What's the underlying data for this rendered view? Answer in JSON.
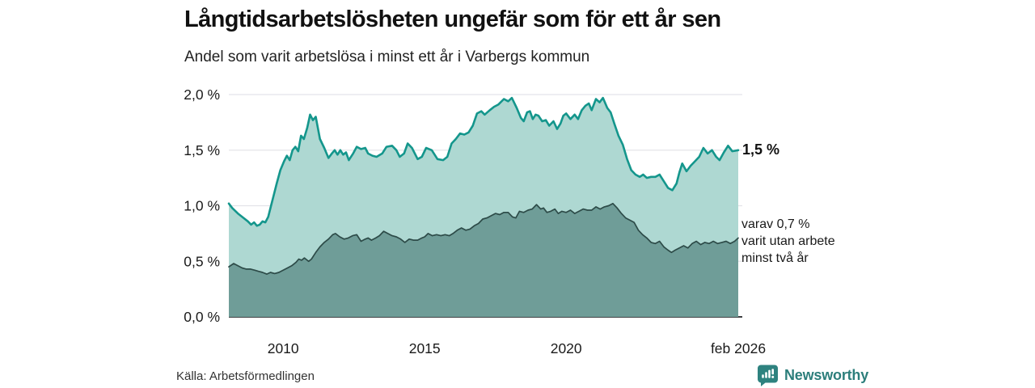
{
  "chart_data": {
    "type": "area",
    "title": "Långtidsarbetslösheten ungefär som för ett år sen",
    "subtitle": "Andel som varit arbetslösa i minst ett år i Varbergs kommun",
    "unit": "%",
    "grid": true,
    "legend": "none",
    "x_axis": {
      "range": [
        2008.08,
        2026.08
      ],
      "ticks": [
        {
          "label": "2010",
          "value": 2010
        },
        {
          "label": "2015",
          "value": 2015
        },
        {
          "label": "2020",
          "value": 2020
        },
        {
          "label": "feb 2026",
          "value": 2026.08
        }
      ]
    },
    "y_axis": {
      "range": [
        0,
        2
      ],
      "ticks": [
        {
          "label": "0,0 %",
          "value": 0
        },
        {
          "label": "0,5 %",
          "value": 0.5
        },
        {
          "label": "1,0 %",
          "value": 1
        },
        {
          "label": "1,5 %",
          "value": 1.5
        },
        {
          "label": "2,0 %",
          "value": 2
        }
      ]
    },
    "series": [
      {
        "name": "Andel arbetslösa minst ett år",
        "line_color": "#14968c",
        "fill_color": "#aed8d2",
        "line_width": 2.6,
        "latest_value": "1,5 %",
        "points": [
          [
            2008.08,
            1.02
          ],
          [
            2008.2,
            0.98
          ],
          [
            2008.4,
            0.93
          ],
          [
            2008.6,
            0.89
          ],
          [
            2008.75,
            0.86
          ],
          [
            2008.87,
            0.83
          ],
          [
            2008.97,
            0.85
          ],
          [
            2009.07,
            0.82
          ],
          [
            2009.17,
            0.83
          ],
          [
            2009.27,
            0.86
          ],
          [
            2009.37,
            0.85
          ],
          [
            2009.47,
            0.9
          ],
          [
            2009.57,
            1.0
          ],
          [
            2009.67,
            1.1
          ],
          [
            2009.77,
            1.2
          ],
          [
            2009.9,
            1.32
          ],
          [
            2010.03,
            1.4
          ],
          [
            2010.13,
            1.45
          ],
          [
            2010.23,
            1.41
          ],
          [
            2010.33,
            1.5
          ],
          [
            2010.43,
            1.53
          ],
          [
            2010.53,
            1.49
          ],
          [
            2010.63,
            1.63
          ],
          [
            2010.73,
            1.6
          ],
          [
            2010.85,
            1.7
          ],
          [
            2010.95,
            1.82
          ],
          [
            2011.05,
            1.77
          ],
          [
            2011.15,
            1.8
          ],
          [
            2011.3,
            1.6
          ],
          [
            2011.45,
            1.52
          ],
          [
            2011.6,
            1.43
          ],
          [
            2011.72,
            1.47
          ],
          [
            2011.82,
            1.5
          ],
          [
            2011.92,
            1.46
          ],
          [
            2012.02,
            1.5
          ],
          [
            2012.12,
            1.46
          ],
          [
            2012.22,
            1.48
          ],
          [
            2012.32,
            1.41
          ],
          [
            2012.47,
            1.47
          ],
          [
            2012.6,
            1.53
          ],
          [
            2012.75,
            1.51
          ],
          [
            2012.9,
            1.52
          ],
          [
            2013.0,
            1.47
          ],
          [
            2013.15,
            1.45
          ],
          [
            2013.3,
            1.44
          ],
          [
            2013.5,
            1.47
          ],
          [
            2013.65,
            1.53
          ],
          [
            2013.85,
            1.54
          ],
          [
            2014.0,
            1.5
          ],
          [
            2014.12,
            1.44
          ],
          [
            2014.27,
            1.47
          ],
          [
            2014.4,
            1.56
          ],
          [
            2014.55,
            1.52
          ],
          [
            2014.75,
            1.42
          ],
          [
            2014.9,
            1.44
          ],
          [
            2015.05,
            1.52
          ],
          [
            2015.25,
            1.5
          ],
          [
            2015.45,
            1.42
          ],
          [
            2015.65,
            1.41
          ],
          [
            2015.8,
            1.44
          ],
          [
            2015.95,
            1.56
          ],
          [
            2016.1,
            1.6
          ],
          [
            2016.25,
            1.65
          ],
          [
            2016.4,
            1.64
          ],
          [
            2016.55,
            1.66
          ],
          [
            2016.7,
            1.72
          ],
          [
            2016.85,
            1.83
          ],
          [
            2017.0,
            1.85
          ],
          [
            2017.12,
            1.82
          ],
          [
            2017.3,
            1.86
          ],
          [
            2017.45,
            1.89
          ],
          [
            2017.6,
            1.91
          ],
          [
            2017.8,
            1.96
          ],
          [
            2017.95,
            1.94
          ],
          [
            2018.08,
            1.97
          ],
          [
            2018.25,
            1.88
          ],
          [
            2018.4,
            1.79
          ],
          [
            2018.5,
            1.76
          ],
          [
            2018.62,
            1.84
          ],
          [
            2018.72,
            1.85
          ],
          [
            2018.82,
            1.78
          ],
          [
            2018.92,
            1.82
          ],
          [
            2019.02,
            1.81
          ],
          [
            2019.15,
            1.76
          ],
          [
            2019.28,
            1.77
          ],
          [
            2019.4,
            1.72
          ],
          [
            2019.55,
            1.76
          ],
          [
            2019.68,
            1.69
          ],
          [
            2019.8,
            1.74
          ],
          [
            2019.9,
            1.81
          ],
          [
            2020.0,
            1.83
          ],
          [
            2020.15,
            1.78
          ],
          [
            2020.3,
            1.82
          ],
          [
            2020.42,
            1.78
          ],
          [
            2020.55,
            1.86
          ],
          [
            2020.68,
            1.9
          ],
          [
            2020.8,
            1.92
          ],
          [
            2020.9,
            1.86
          ],
          [
            2021.05,
            1.96
          ],
          [
            2021.18,
            1.93
          ],
          [
            2021.3,
            1.97
          ],
          [
            2021.45,
            1.88
          ],
          [
            2021.57,
            1.84
          ],
          [
            2021.7,
            1.74
          ],
          [
            2021.85,
            1.63
          ],
          [
            2022.0,
            1.55
          ],
          [
            2022.15,
            1.42
          ],
          [
            2022.3,
            1.32
          ],
          [
            2022.45,
            1.28
          ],
          [
            2022.6,
            1.26
          ],
          [
            2022.72,
            1.28
          ],
          [
            2022.85,
            1.25
          ],
          [
            2023.0,
            1.26
          ],
          [
            2023.15,
            1.26
          ],
          [
            2023.3,
            1.28
          ],
          [
            2023.45,
            1.22
          ],
          [
            2023.6,
            1.16
          ],
          [
            2023.75,
            1.14
          ],
          [
            2023.9,
            1.2
          ],
          [
            2024.0,
            1.3
          ],
          [
            2024.1,
            1.38
          ],
          [
            2024.25,
            1.31
          ],
          [
            2024.4,
            1.36
          ],
          [
            2024.55,
            1.4
          ],
          [
            2024.7,
            1.44
          ],
          [
            2024.85,
            1.52
          ],
          [
            2025.0,
            1.47
          ],
          [
            2025.15,
            1.5
          ],
          [
            2025.3,
            1.44
          ],
          [
            2025.42,
            1.41
          ],
          [
            2025.57,
            1.48
          ],
          [
            2025.72,
            1.54
          ],
          [
            2025.87,
            1.49
          ],
          [
            2026.08,
            1.5
          ]
        ]
      },
      {
        "name": "Andel utan arbete minst två år",
        "line_color": "#2d4b48",
        "fill_color": "#6f9d98",
        "line_width": 1.7,
        "latest_value": "0,7 %",
        "points": [
          [
            2008.08,
            0.45
          ],
          [
            2008.25,
            0.48
          ],
          [
            2008.4,
            0.46
          ],
          [
            2008.55,
            0.44
          ],
          [
            2008.7,
            0.43
          ],
          [
            2008.85,
            0.43
          ],
          [
            2009.0,
            0.42
          ],
          [
            2009.12,
            0.41
          ],
          [
            2009.27,
            0.4
          ],
          [
            2009.42,
            0.385
          ],
          [
            2009.55,
            0.4
          ],
          [
            2009.7,
            0.39
          ],
          [
            2009.85,
            0.4
          ],
          [
            2010.0,
            0.42
          ],
          [
            2010.15,
            0.44
          ],
          [
            2010.3,
            0.46
          ],
          [
            2010.45,
            0.49
          ],
          [
            2010.55,
            0.52
          ],
          [
            2010.65,
            0.51
          ],
          [
            2010.75,
            0.53
          ],
          [
            2010.9,
            0.5
          ],
          [
            2011.0,
            0.52
          ],
          [
            2011.15,
            0.58
          ],
          [
            2011.3,
            0.63
          ],
          [
            2011.45,
            0.67
          ],
          [
            2011.6,
            0.7
          ],
          [
            2011.75,
            0.74
          ],
          [
            2011.85,
            0.75
          ],
          [
            2012.0,
            0.72
          ],
          [
            2012.15,
            0.7
          ],
          [
            2012.3,
            0.71
          ],
          [
            2012.45,
            0.73
          ],
          [
            2012.6,
            0.74
          ],
          [
            2012.75,
            0.68
          ],
          [
            2012.9,
            0.7
          ],
          [
            2013.0,
            0.71
          ],
          [
            2013.12,
            0.69
          ],
          [
            2013.27,
            0.71
          ],
          [
            2013.4,
            0.73
          ],
          [
            2013.55,
            0.77
          ],
          [
            2013.7,
            0.75
          ],
          [
            2013.85,
            0.73
          ],
          [
            2014.0,
            0.72
          ],
          [
            2014.15,
            0.7
          ],
          [
            2014.3,
            0.67
          ],
          [
            2014.45,
            0.7
          ],
          [
            2014.6,
            0.69
          ],
          [
            2014.75,
            0.69
          ],
          [
            2014.9,
            0.71
          ],
          [
            2015.0,
            0.72
          ],
          [
            2015.12,
            0.75
          ],
          [
            2015.27,
            0.73
          ],
          [
            2015.42,
            0.74
          ],
          [
            2015.57,
            0.73
          ],
          [
            2015.72,
            0.74
          ],
          [
            2015.87,
            0.73
          ],
          [
            2016.0,
            0.75
          ],
          [
            2016.15,
            0.78
          ],
          [
            2016.3,
            0.8
          ],
          [
            2016.45,
            0.78
          ],
          [
            2016.6,
            0.79
          ],
          [
            2016.75,
            0.82
          ],
          [
            2016.9,
            0.84
          ],
          [
            2017.05,
            0.88
          ],
          [
            2017.2,
            0.89
          ],
          [
            2017.35,
            0.91
          ],
          [
            2017.5,
            0.93
          ],
          [
            2017.65,
            0.92
          ],
          [
            2017.8,
            0.94
          ],
          [
            2017.95,
            0.94
          ],
          [
            2018.1,
            0.9
          ],
          [
            2018.22,
            0.89
          ],
          [
            2018.35,
            0.95
          ],
          [
            2018.5,
            0.94
          ],
          [
            2018.65,
            0.96
          ],
          [
            2018.8,
            0.97
          ],
          [
            2018.95,
            1.01
          ],
          [
            2019.1,
            0.97
          ],
          [
            2019.2,
            0.98
          ],
          [
            2019.32,
            0.94
          ],
          [
            2019.45,
            0.95
          ],
          [
            2019.6,
            0.97
          ],
          [
            2019.72,
            0.93
          ],
          [
            2019.85,
            0.95
          ],
          [
            2020.0,
            0.94
          ],
          [
            2020.15,
            0.96
          ],
          [
            2020.3,
            0.93
          ],
          [
            2020.45,
            0.95
          ],
          [
            2020.6,
            0.97
          ],
          [
            2020.75,
            0.96
          ],
          [
            2020.9,
            0.96
          ],
          [
            2021.05,
            0.99
          ],
          [
            2021.2,
            0.97
          ],
          [
            2021.35,
            0.99
          ],
          [
            2021.5,
            1.0
          ],
          [
            2021.65,
            1.02
          ],
          [
            2021.8,
            0.98
          ],
          [
            2021.95,
            0.93
          ],
          [
            2022.1,
            0.89
          ],
          [
            2022.25,
            0.87
          ],
          [
            2022.4,
            0.85
          ],
          [
            2022.55,
            0.78
          ],
          [
            2022.7,
            0.74
          ],
          [
            2022.85,
            0.71
          ],
          [
            2023.0,
            0.67
          ],
          [
            2023.15,
            0.66
          ],
          [
            2023.3,
            0.68
          ],
          [
            2023.45,
            0.63
          ],
          [
            2023.6,
            0.6
          ],
          [
            2023.72,
            0.58
          ],
          [
            2023.85,
            0.6
          ],
          [
            2024.0,
            0.62
          ],
          [
            2024.15,
            0.64
          ],
          [
            2024.3,
            0.62
          ],
          [
            2024.45,
            0.66
          ],
          [
            2024.6,
            0.68
          ],
          [
            2024.75,
            0.65
          ],
          [
            2024.9,
            0.67
          ],
          [
            2025.05,
            0.66
          ],
          [
            2025.2,
            0.68
          ],
          [
            2025.35,
            0.66
          ],
          [
            2025.5,
            0.67
          ],
          [
            2025.65,
            0.68
          ],
          [
            2025.8,
            0.66
          ],
          [
            2025.95,
            0.68
          ],
          [
            2026.08,
            0.71
          ]
        ]
      }
    ],
    "annotations": {
      "latest_label": "1,5 %",
      "detail_lines": [
        "varav 0,7 %",
        "varit utan arbete",
        "minst två år"
      ]
    }
  },
  "footer": {
    "source": "Källa: Arbetsförmedlingen",
    "brand": "Newsworthy",
    "brand_icon": "newsworthy-chart-bubble-icon"
  },
  "colors": {
    "accent_teal": "#14968c",
    "light_fill": "#aed8d2",
    "dark_fill": "#6f9d98",
    "dark_line": "#2d4b48",
    "grid": "#e4e4e9",
    "axis": "#3f4043",
    "tick_text": "#1a1a1a",
    "brand_teal": "#2c7e7b"
  }
}
